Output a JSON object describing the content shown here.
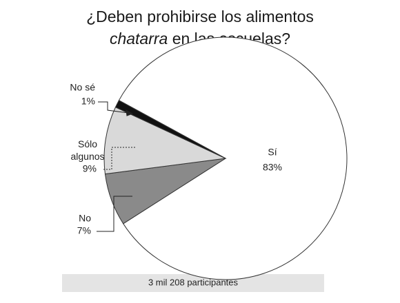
{
  "chart_data": {
    "type": "pie",
    "title": [
      "¿Deben prohibirse los alimentos",
      "chatarra",
      "en las escuelas?"
    ],
    "categories": [
      "Sí",
      "No",
      "Sólo algunos",
      "No sé"
    ],
    "values": [
      83,
      7,
      9,
      1
    ],
    "value_labels": [
      "83%",
      "7%",
      "9%",
      "1%"
    ],
    "colors": [
      "#ffffff",
      "#8a8a8a",
      "#d9d9d9",
      "#111111"
    ],
    "note": "3 mil 208 participantes"
  }
}
